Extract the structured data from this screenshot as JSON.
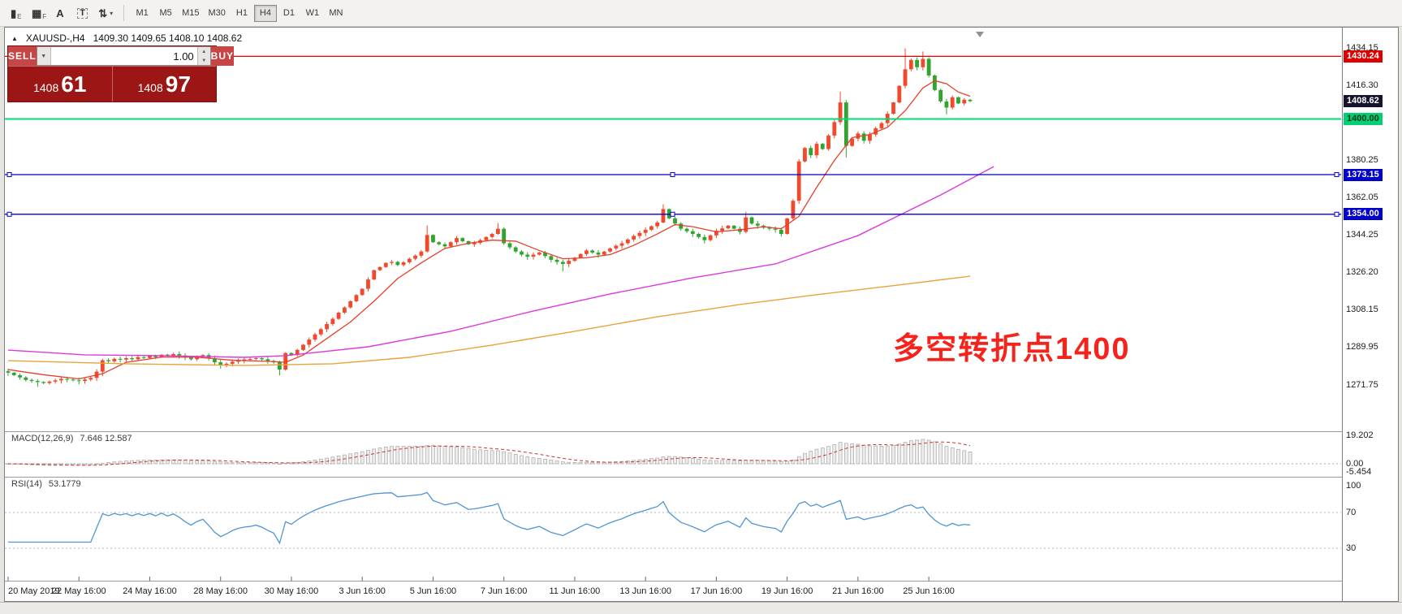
{
  "toolbar": {
    "tools": [
      {
        "name": "candlestick-chart-icon",
        "glyph": "▮",
        "sub": "E"
      },
      {
        "name": "grid-chart-icon",
        "glyph": "▦",
        "sub": "F"
      },
      {
        "name": "cursor-tool-icon",
        "glyph": "A",
        "sub": ""
      },
      {
        "name": "text-label-tool-icon",
        "glyph": "T",
        "sub": "",
        "boxed": true
      },
      {
        "name": "indicators-menu-icon",
        "glyph": "⇅",
        "sub": "",
        "caret": true
      }
    ],
    "timeframes": [
      "M1",
      "M5",
      "M15",
      "M30",
      "H1",
      "H4",
      "D1",
      "W1",
      "MN"
    ],
    "active": "H4"
  },
  "window": {
    "symbol": "XAUUSD-,H4",
    "ohlc": "1409.30 1409.65 1408.10 1408.62"
  },
  "trade_panel": {
    "sell_label": "SELL",
    "buy_label": "BUY",
    "volume": "1.00",
    "bid": {
      "big": "1408",
      "pips": "61"
    },
    "ask": {
      "big": "1408",
      "pips": "97"
    }
  },
  "indicators": {
    "macd": {
      "label": "MACD(12,26,9)",
      "values": "7.646 12.587"
    },
    "rsi": {
      "label": "RSI(14)",
      "value": "53.1779"
    }
  },
  "annotation": {
    "text": "多空转折点1400",
    "color": "#f4241c"
  },
  "chart_data": {
    "type": "candlestick",
    "symbol": "XAUUSD",
    "timeframe": "H4",
    "ohlc_display": {
      "open": 1409.3,
      "high": 1409.65,
      "low": 1408.1,
      "close": 1408.62
    },
    "colors": {
      "up": "#f1492b",
      "down": "#2fa52f",
      "macd_bar": "#ececec",
      "macd_bar_stroke": "#a8a8a8",
      "macd_signal": "#cc3333",
      "rsi_line": "#4f94d6"
    },
    "closes": [
      1277.5,
      1276.3,
      1275.2,
      1274.0,
      1273.5,
      1273.0,
      1272.5,
      1273.2,
      1273.8,
      1274.5,
      1274.2,
      1273.8,
      1273.5,
      1274.2,
      1275.0,
      1278.0,
      1283.5,
      1283.0,
      1284.2,
      1283.8,
      1284.5,
      1284.0,
      1285.0,
      1284.6,
      1285.5,
      1285.0,
      1286.2,
      1285.6,
      1286.5,
      1285.8,
      1284.8,
      1284.0,
      1285.2,
      1286.0,
      1284.5,
      1282.5,
      1281.0,
      1281.8,
      1282.8,
      1283.5,
      1283.9,
      1284.1,
      1284.5,
      1284.0,
      1283.2,
      1282.5,
      1279.0,
      1287.0,
      1286.0,
      1288.5,
      1291.0,
      1293.5,
      1296.0,
      1298.5,
      1301.0,
      1303.5,
      1306.5,
      1309.0,
      1312.0,
      1315.0,
      1318.0,
      1322.5,
      1327.0,
      1328.5,
      1330.5,
      1331.0,
      1329.5,
      1330.8,
      1332.5,
      1334.0,
      1336.0,
      1344.0,
      1340.5,
      1339.5,
      1338.5,
      1340.5,
      1342.5,
      1341.0,
      1339.5,
      1340.2,
      1341.5,
      1343.0,
      1344.5,
      1347.0,
      1340.0,
      1338.0,
      1336.0,
      1334.5,
      1333.5,
      1334.5,
      1335.5,
      1333.8,
      1332.0,
      1331.0,
      1330.0,
      1331.5,
      1333.0,
      1334.8,
      1336.5,
      1335.5,
      1334.5,
      1336.0,
      1337.5,
      1338.8,
      1340.0,
      1341.8,
      1343.5,
      1345.0,
      1346.5,
      1348.2,
      1350.0,
      1356.5,
      1352.0,
      1349.5,
      1347.0,
      1345.8,
      1344.5,
      1343.0,
      1341.5,
      1343.8,
      1346.0,
      1347.2,
      1348.5,
      1347.0,
      1345.5,
      1352.5,
      1349.5,
      1348.5,
      1347.5,
      1347.0,
      1346.5,
      1344.5,
      1352.0,
      1360.5,
      1379.5,
      1386.0,
      1382.5,
      1388.0,
      1385.5,
      1392.0,
      1398.5,
      1408.0,
      1387.0,
      1390.5,
      1393.0,
      1389.5,
      1392.5,
      1395.5,
      1398.0,
      1402.5,
      1408.0,
      1416.0,
      1424.0,
      1428.5,
      1425.0,
      1429.0,
      1421.0,
      1414.0,
      1408.5,
      1405.5,
      1410.5,
      1407.5,
      1409.3,
      1408.62
    ],
    "wick_overrides": {
      "5": {
        "l": 1270.6
      },
      "16": {
        "l": 1275.8
      },
      "46": {
        "l": 1276.2
      },
      "71": {
        "h": 1348.6
      },
      "83": {
        "h": 1349.8
      },
      "94": {
        "l": 1326.4
      },
      "111": {
        "h": 1358.8
      },
      "125": {
        "h": 1355.2
      },
      "134": {
        "l": 1359.0
      },
      "141": {
        "h": 1413.2
      },
      "142": {
        "l": 1381.4
      },
      "152": {
        "h": 1434.15
      },
      "155": {
        "h": 1432.6
      },
      "159": {
        "l": 1402.2
      },
      "163": {
        "h": 1409.65,
        "l": 1408.1
      }
    },
    "mas": [
      {
        "name": "ma-fast",
        "color": "#e5402a",
        "width": 1.3,
        "points": [
          [
            0,
            1279
          ],
          [
            6,
            1276.5
          ],
          [
            12,
            1274.5
          ],
          [
            16,
            1277
          ],
          [
            20,
            1282.5
          ],
          [
            26,
            1285
          ],
          [
            32,
            1285
          ],
          [
            38,
            1283.5
          ],
          [
            44,
            1283
          ],
          [
            47,
            1282.5
          ],
          [
            50,
            1286
          ],
          [
            54,
            1294
          ],
          [
            58,
            1302
          ],
          [
            62,
            1312
          ],
          [
            66,
            1323
          ],
          [
            70,
            1330.5
          ],
          [
            74,
            1337.5
          ],
          [
            78,
            1340
          ],
          [
            82,
            1341.5
          ],
          [
            86,
            1341
          ],
          [
            90,
            1336.5
          ],
          [
            94,
            1332.5
          ],
          [
            98,
            1333
          ],
          [
            102,
            1334.5
          ],
          [
            106,
            1339
          ],
          [
            110,
            1344.5
          ],
          [
            113,
            1349
          ],
          [
            116,
            1348
          ],
          [
            120,
            1345.5
          ],
          [
            124,
            1346.5
          ],
          [
            128,
            1348
          ],
          [
            131,
            1347
          ],
          [
            134,
            1353
          ],
          [
            137,
            1367
          ],
          [
            140,
            1380
          ],
          [
            143,
            1391
          ],
          [
            146,
            1392.5
          ],
          [
            149,
            1396
          ],
          [
            152,
            1404
          ],
          [
            155,
            1415
          ],
          [
            157,
            1418.5
          ],
          [
            159,
            1417
          ],
          [
            161,
            1413
          ],
          [
            163,
            1411
          ]
        ]
      },
      {
        "name": "ma-mid",
        "color": "#dd38dd",
        "width": 1.4,
        "points": [
          [
            0,
            1288.4
          ],
          [
            13,
            1286.1
          ],
          [
            26,
            1285.7
          ],
          [
            40,
            1284.9
          ],
          [
            47,
            1285.7
          ],
          [
            61,
            1290
          ],
          [
            75,
            1297.5
          ],
          [
            89,
            1307.3
          ],
          [
            102,
            1315.5
          ],
          [
            116,
            1323.3
          ],
          [
            130,
            1330
          ],
          [
            144,
            1343.7
          ],
          [
            158,
            1363.3
          ],
          [
            167,
            1377
          ]
        ]
      },
      {
        "name": "ma-slow",
        "color": "#e8a33a",
        "width": 1.4,
        "points": [
          [
            0,
            1283.3
          ],
          [
            20,
            1281.8
          ],
          [
            40,
            1281
          ],
          [
            55,
            1281.8
          ],
          [
            68,
            1284.9
          ],
          [
            82,
            1290.8
          ],
          [
            96,
            1297.5
          ],
          [
            110,
            1304.5
          ],
          [
            124,
            1310.4
          ],
          [
            138,
            1315.5
          ],
          [
            152,
            1320.2
          ],
          [
            163,
            1324.1
          ]
        ]
      }
    ],
    "levels": [
      {
        "value": 1430.24,
        "color": "#dd0000",
        "width": 1.2
      },
      {
        "value": 1400.0,
        "color": "#00dd77",
        "width": 2
      },
      {
        "value": 1373.15,
        "color": "#0000cc",
        "width": 1.3,
        "handles": true
      },
      {
        "value": 1354.0,
        "color": "#0000cc",
        "width": 1.3,
        "handles": true
      }
    ],
    "price_axis": [
      1434.15,
      1416.3,
      1380.25,
      1362.05,
      1344.25,
      1326.2,
      1308.15,
      1289.95,
      1271.75
    ],
    "special_labels": [
      {
        "t": "1430.24",
        "v": 1430.24,
        "bg": "#dd0000",
        "fg": "#ffffff"
      },
      {
        "t": "1408.62",
        "v": 1408.62,
        "bg": "#14142e",
        "fg": "#ffffff"
      },
      {
        "t": "1400.00",
        "v": 1400.0,
        "bg": "#00d073",
        "fg": "#003318"
      },
      {
        "t": "1373.15",
        "v": 1373.15,
        "bg": "#0000cc",
        "fg": "#ffffff"
      },
      {
        "t": "1354.00",
        "v": 1354.0,
        "bg": "#0000cc",
        "fg": "#ffffff"
      }
    ],
    "macd": {
      "axis": [
        {
          "t": "19.202",
          "v": 19.202
        },
        {
          "t": "0.00",
          "v": 0
        },
        {
          "t": "-5.454",
          "v": -5.454
        }
      ]
    },
    "rsi": {
      "axis": [
        {
          "t": "100",
          "v": 100
        },
        {
          "t": "70",
          "v": 70
        },
        {
          "t": "30",
          "v": 30
        }
      ],
      "levels": [
        70,
        30
      ]
    },
    "x_labels": [
      {
        "i": 0,
        "t": "20 May 2019"
      },
      {
        "i": 12,
        "t": "22 May 16:00"
      },
      {
        "i": 24,
        "t": "24 May 16:00"
      },
      {
        "i": 36,
        "t": "28 May 16:00"
      },
      {
        "i": 48,
        "t": "30 May 16:00"
      },
      {
        "i": 60,
        "t": "3 Jun 16:00"
      },
      {
        "i": 72,
        "t": "5 Jun 16:00"
      },
      {
        "i": 84,
        "t": "7 Jun 16:00"
      },
      {
        "i": 96,
        "t": "11 Jun 16:00"
      },
      {
        "i": 108,
        "t": "13 Jun 16:00"
      },
      {
        "i": 120,
        "t": "17 Jun 16:00"
      },
      {
        "i": 132,
        "t": "19 Jun 16:00"
      },
      {
        "i": 144,
        "t": "21 Jun 16:00"
      },
      {
        "i": 156,
        "t": "25 Jun 16:00"
      }
    ]
  }
}
